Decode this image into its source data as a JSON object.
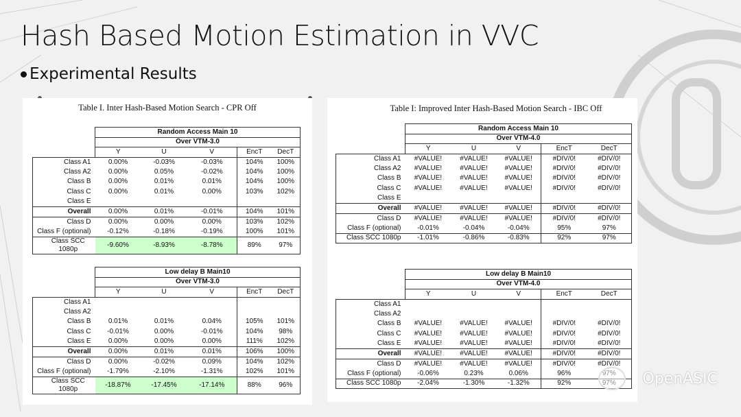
{
  "slide": {
    "title": "Hash Based Motion Estimation in VVC",
    "bullet": "Experimental Results",
    "watermark": "OpenASIC"
  },
  "tables": [
    {
      "caption": "Table I. Inter Hash-Based Motion Search - CPR Off",
      "sections": [
        {
          "mode": "Random Access Main 10",
          "over": "Over VTM-3.0",
          "columns": [
            "Y",
            "U",
            "V",
            "EncT",
            "DecT"
          ],
          "rows": [
            {
              "label": "Class A1",
              "values": [
                "0.00%",
                "-0.03%",
                "-0.03%",
                "104%",
                "100%"
              ]
            },
            {
              "label": "Class A2",
              "values": [
                "0.00%",
                "0.05%",
                "-0.02%",
                "104%",
                "100%"
              ]
            },
            {
              "label": "Class B",
              "values": [
                "0.00%",
                "0.01%",
                "0.01%",
                "104%",
                "100%"
              ]
            },
            {
              "label": "Class C",
              "values": [
                "0.00%",
                "0.01%",
                "0.00%",
                "103%",
                "102%"
              ]
            },
            {
              "label": "Class E",
              "values": [
                "",
                "",
                "",
                "",
                ""
              ]
            },
            {
              "label": "Overall",
              "values": [
                "0.00%",
                "0.01%",
                "-0.01%",
                "104%",
                "101%"
              ],
              "bold": true
            },
            {
              "label": "Class D",
              "values": [
                "0.00%",
                "0.00%",
                "0.00%",
                "103%",
                "102%"
              ]
            },
            {
              "label": "Class F (optional)",
              "values": [
                "-0.12%",
                "-0.18%",
                "-0.19%",
                "100%",
                "101%"
              ]
            },
            {
              "label": "Class SCC 1080p",
              "values": [
                "-9.60%",
                "-8.93%",
                "-8.78%",
                "89%",
                "97%"
              ],
              "highlight": true
            }
          ]
        },
        {
          "mode": "Low delay B Main10",
          "over": "Over VTM-3.0",
          "columns": [
            "Y",
            "U",
            "V",
            "EncT",
            "DecT"
          ],
          "rows": [
            {
              "label": "Class A1",
              "values": [
                "",
                "",
                "",
                "",
                ""
              ]
            },
            {
              "label": "Class A2",
              "values": [
                "",
                "",
                "",
                "",
                ""
              ]
            },
            {
              "label": "Class B",
              "values": [
                "0.01%",
                "0.01%",
                "0.04%",
                "105%",
                "101%"
              ]
            },
            {
              "label": "Class C",
              "values": [
                "-0.01%",
                "0.00%",
                "-0.01%",
                "104%",
                "98%"
              ]
            },
            {
              "label": "Class E",
              "values": [
                "0.00%",
                "0.00%",
                "0.00%",
                "111%",
                "102%"
              ]
            },
            {
              "label": "Overall",
              "values": [
                "0.00%",
                "0.01%",
                "0.01%",
                "106%",
                "100%"
              ],
              "bold": true
            },
            {
              "label": "Class D",
              "values": [
                "0.00%",
                "-0.02%",
                "0.09%",
                "104%",
                "102%"
              ]
            },
            {
              "label": "Class F (optional)",
              "values": [
                "-1.79%",
                "-2.10%",
                "-1.31%",
                "102%",
                "101%"
              ]
            },
            {
              "label": "Class SCC 1080p",
              "values": [
                "-18.87%",
                "-17.45%",
                "-17.14%",
                "88%",
                "96%"
              ],
              "highlight": true
            }
          ]
        }
      ]
    },
    {
      "caption": "Table I: Improved Inter Hash-Based Motion Search - IBC Off",
      "sections": [
        {
          "mode": "Random Access Main 10",
          "over": "Over VTM-4.0",
          "columns": [
            "Y",
            "U",
            "V",
            "EncT",
            "DecT"
          ],
          "rows": [
            {
              "label": "Class A1",
              "values": [
                "#VALUE!",
                "#VALUE!",
                "#VALUE!",
                "#DIV/0!",
                "#DIV/0!"
              ]
            },
            {
              "label": "Class A2",
              "values": [
                "#VALUE!",
                "#VALUE!",
                "#VALUE!",
                "#DIV/0!",
                "#DIV/0!"
              ]
            },
            {
              "label": "Class B",
              "values": [
                "#VALUE!",
                "#VALUE!",
                "#VALUE!",
                "#DIV/0!",
                "#DIV/0!"
              ]
            },
            {
              "label": "Class C",
              "values": [
                "#VALUE!",
                "#VALUE!",
                "#VALUE!",
                "#DIV/0!",
                "#DIV/0!"
              ]
            },
            {
              "label": "Class E",
              "values": [
                "",
                "",
                "",
                "",
                ""
              ]
            },
            {
              "label": "Overall",
              "values": [
                "#VALUE!",
                "#VALUE!",
                "#VALUE!",
                "#DIV/0!",
                "#DIV/0!"
              ],
              "bold": true
            },
            {
              "label": "Class D",
              "values": [
                "#VALUE!",
                "#VALUE!",
                "#VALUE!",
                "#DIV/0!",
                "#DIV/0!"
              ]
            },
            {
              "label": "Class F (optional)",
              "values": [
                "-0.01%",
                "-0.04%",
                "-0.04%",
                "95%",
                "97%"
              ]
            },
            {
              "label": "Class SCC 1080p",
              "values": [
                "-1.01%",
                "-0.86%",
                "-0.83%",
                "92%",
                "97%"
              ]
            }
          ]
        },
        {
          "mode": "Low delay B Main10",
          "over": "Over VTM-4.0",
          "columns": [
            "Y",
            "U",
            "V",
            "EncT",
            "DecT"
          ],
          "rows": [
            {
              "label": "Class A1",
              "values": [
                "",
                "",
                "",
                "",
                ""
              ]
            },
            {
              "label": "Class A2",
              "values": [
                "",
                "",
                "",
                "",
                ""
              ]
            },
            {
              "label": "Class B",
              "values": [
                "#VALUE!",
                "#VALUE!",
                "#VALUE!",
                "#DIV/0!",
                "#DIV/0!"
              ]
            },
            {
              "label": "Class C",
              "values": [
                "#VALUE!",
                "#VALUE!",
                "#VALUE!",
                "#DIV/0!",
                "#DIV/0!"
              ]
            },
            {
              "label": "Class E",
              "values": [
                "#VALUE!",
                "#VALUE!",
                "#VALUE!",
                "#DIV/0!",
                "#DIV/0!"
              ]
            },
            {
              "label": "Overall",
              "values": [
                "#VALUE!",
                "#VALUE!",
                "#VALUE!",
                "#DIV/0!",
                "#DIV/0!"
              ],
              "bold": true
            },
            {
              "label": "Class D",
              "values": [
                "#VALUE!",
                "#VALUE!",
                "#VALUE!",
                "#DIV/0!",
                "#DIV/0!"
              ]
            },
            {
              "label": "Class F (optional)",
              "values": [
                "-0.06%",
                "0.23%",
                "0.06%",
                "96%",
                "97%"
              ]
            },
            {
              "label": "Class SCC 1080p",
              "values": [
                "-2.04%",
                "-1.30%",
                "-1.32%",
                "92%",
                "97%"
              ]
            }
          ]
        }
      ]
    }
  ]
}
